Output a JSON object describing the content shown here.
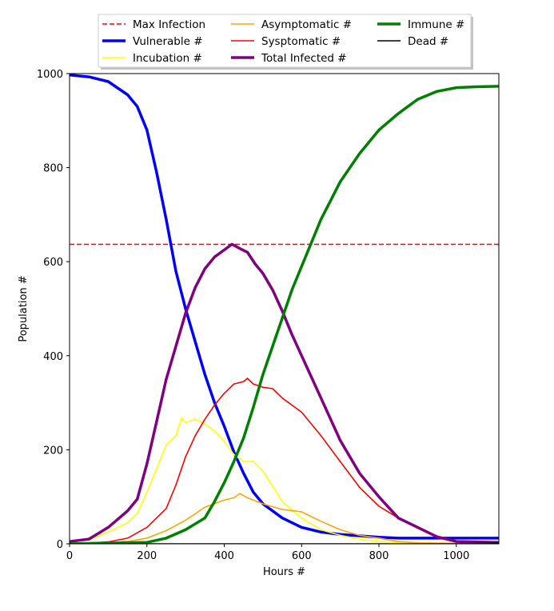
{
  "chart_data": {
    "type": "line",
    "title": "",
    "xlabel": "Hours #",
    "ylabel": "Population #",
    "xlim": [
      0,
      1110
    ],
    "ylim": [
      0,
      1000
    ],
    "xticks": [
      0,
      200,
      400,
      600,
      800,
      1000
    ],
    "yticks": [
      0,
      200,
      400,
      600,
      800,
      1000
    ],
    "grid": false,
    "legend_placement": "top-center",
    "legend_columns": 3,
    "hlines": [
      {
        "name": "Max Infection",
        "y": 637,
        "color": "#ff0000",
        "style": "dashed"
      }
    ],
    "series": [
      {
        "name": "Vulnerable #",
        "color": "#0000ff",
        "width": "thick",
        "x": [
          0,
          50,
          100,
          150,
          175,
          200,
          225,
          250,
          275,
          300,
          325,
          350,
          375,
          400,
          425,
          450,
          475,
          500,
          550,
          600,
          650,
          700,
          750,
          800,
          850,
          900,
          1000,
          1110
        ],
        "y": [
          997,
          993,
          983,
          955,
          930,
          880,
          790,
          690,
          580,
          500,
          430,
          360,
          300,
          250,
          195,
          150,
          110,
          85,
          55,
          35,
          25,
          20,
          17,
          14,
          12,
          12,
          12,
          12
        ]
      },
      {
        "name": "Incubation #",
        "color": "#ffff00",
        "width": "normal",
        "x": [
          0,
          50,
          100,
          150,
          175,
          200,
          225,
          250,
          275,
          290,
          300,
          325,
          350,
          375,
          400,
          425,
          450,
          475,
          500,
          550,
          600,
          650,
          700,
          750,
          800,
          850,
          1110
        ],
        "y": [
          5,
          8,
          25,
          45,
          65,
          110,
          160,
          210,
          230,
          268,
          258,
          265,
          255,
          240,
          218,
          190,
          175,
          175,
          155,
          90,
          55,
          30,
          18,
          10,
          5,
          2,
          0
        ]
      },
      {
        "name": "Asymptomatic #",
        "color": "#ffa500",
        "width": "normal",
        "x": [
          0,
          100,
          150,
          200,
          250,
          300,
          350,
          400,
          425,
          440,
          460,
          500,
          550,
          600,
          650,
          700,
          750,
          800,
          850,
          900,
          1110
        ],
        "y": [
          0,
          2,
          5,
          12,
          28,
          50,
          78,
          93,
          98,
          107,
          98,
          85,
          73,
          68,
          48,
          30,
          18,
          12,
          5,
          2,
          0
        ]
      },
      {
        "name": "Sysptomatic #",
        "color": "#ff0000",
        "width": "normal",
        "x": [
          0,
          100,
          150,
          200,
          250,
          275,
          300,
          325,
          350,
          375,
          400,
          425,
          450,
          460,
          475,
          500,
          525,
          550,
          600,
          650,
          700,
          750,
          800,
          850,
          900,
          950,
          1000,
          1110
        ],
        "y": [
          0,
          4,
          12,
          35,
          75,
          125,
          185,
          230,
          265,
          295,
          320,
          340,
          345,
          352,
          340,
          333,
          330,
          310,
          280,
          230,
          175,
          120,
          80,
          55,
          35,
          15,
          5,
          2
        ]
      },
      {
        "name": "Total Infected #",
        "color": "#800080",
        "width": "thick",
        "x": [
          0,
          50,
          100,
          150,
          175,
          200,
          225,
          250,
          275,
          300,
          325,
          350,
          375,
          400,
          420,
          440,
          460,
          480,
          500,
          525,
          550,
          575,
          600,
          650,
          700,
          750,
          800,
          850,
          900,
          950,
          1000,
          1110
        ],
        "y": [
          5,
          10,
          35,
          70,
          95,
          170,
          260,
          350,
          420,
          490,
          545,
          585,
          610,
          625,
          637,
          628,
          620,
          595,
          575,
          540,
          495,
          445,
          400,
          310,
          220,
          150,
          100,
          55,
          35,
          15,
          5,
          3
        ]
      },
      {
        "name": "Immune #",
        "color": "#008000",
        "width": "thick",
        "x": [
          0,
          200,
          250,
          300,
          350,
          375,
          400,
          425,
          450,
          475,
          500,
          525,
          550,
          575,
          600,
          625,
          650,
          675,
          700,
          750,
          800,
          850,
          900,
          950,
          1000,
          1050,
          1110
        ],
        "y": [
          0,
          3,
          12,
          30,
          55,
          90,
          130,
          175,
          225,
          290,
          360,
          420,
          480,
          540,
          590,
          640,
          690,
          730,
          770,
          830,
          880,
          915,
          945,
          962,
          970,
          972,
          973
        ]
      },
      {
        "name": "Dead #",
        "color": "#000000",
        "width": "normal",
        "x": [
          0,
          400,
          800,
          1000,
          1110
        ],
        "y": [
          0,
          0,
          0,
          0,
          2
        ]
      }
    ]
  }
}
